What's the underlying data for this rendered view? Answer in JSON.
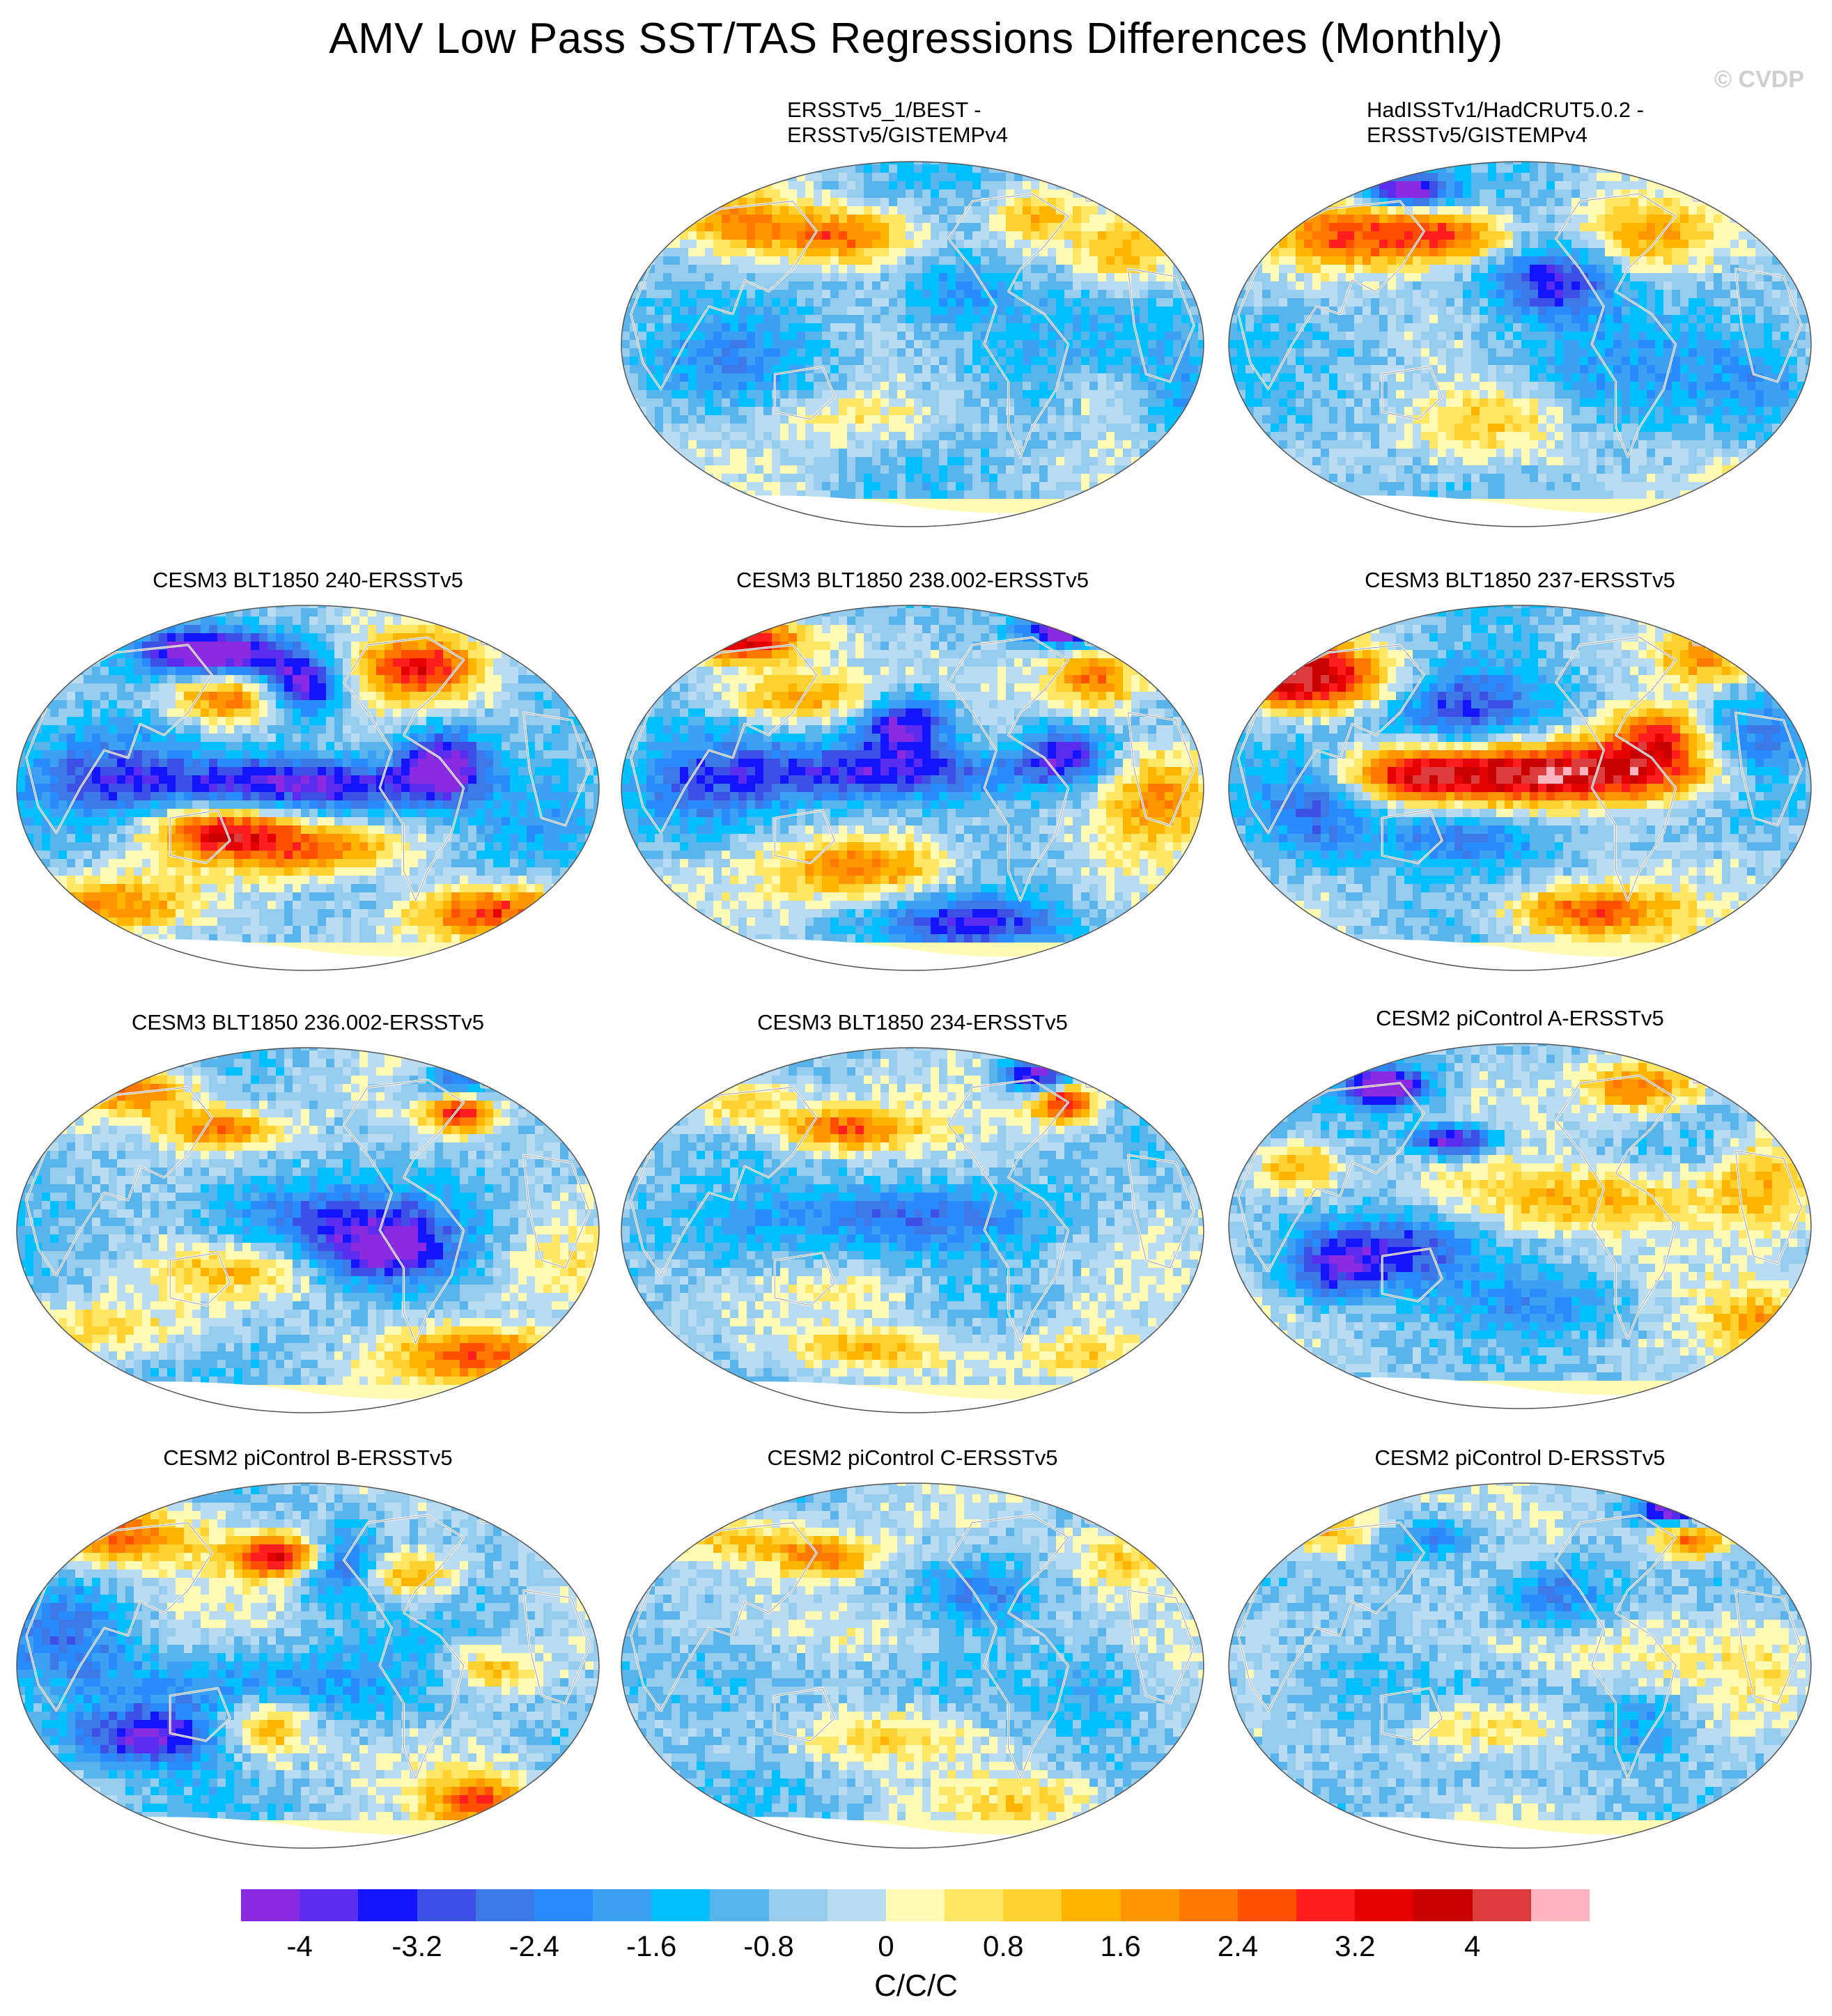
{
  "title": "AMV Low Pass SST/TAS Regressions Differences (Monthly)",
  "watermark": "© CVDP",
  "colorbar": {
    "units": "C/C/C",
    "ticks": [
      "-4",
      "-3.2",
      "-2.4",
      "-1.6",
      "-0.8",
      "0",
      "0.8",
      "1.6",
      "2.4",
      "3.2",
      "4"
    ],
    "colors": [
      "#8a2be2",
      "#5a2cf0",
      "#1414ff",
      "#3c50e6",
      "#3c78e6",
      "#288cff",
      "#3ca0f5",
      "#00c0ff",
      "#5ab4ec",
      "#96cdee",
      "#b9dcf2",
      "#fffab4",
      "#ffe664",
      "#ffd232",
      "#ffb400",
      "#ff9600",
      "#ff7800",
      "#ff5000",
      "#ff1e1e",
      "#e60000",
      "#c80000",
      "#dc3c3c",
      "#ffb4be"
    ]
  },
  "panels": [
    {
      "id": "p1",
      "title_line1": "ERSSTv5_1/BEST -",
      "title_line2": "ERSSTv5/GISTEMPv4",
      "pattern": "obs1"
    },
    {
      "id": "p2",
      "title_line1": "HadISSTv1/HadCRUT5.0.2 -",
      "title_line2": "ERSSTv5/GISTEMPv4",
      "pattern": "obs2"
    },
    {
      "id": "p3",
      "title": "CESM3 BLT1850 240-ERSSTv5",
      "pattern": "m240"
    },
    {
      "id": "p4",
      "title": "CESM3 BLT1850 238.002-ERSSTv5",
      "pattern": "m238"
    },
    {
      "id": "p5",
      "title": "CESM3 BLT1850 237-ERSSTv5",
      "pattern": "m237"
    },
    {
      "id": "p6",
      "title": "CESM3 BLT1850 236.002-ERSSTv5",
      "pattern": "m236"
    },
    {
      "id": "p7",
      "title": "CESM3 BLT1850 234-ERSSTv5",
      "pattern": "m234"
    },
    {
      "id": "p8",
      "title": "CESM2 piControl A-ERSSTv5",
      "pattern": "cA"
    },
    {
      "id": "p9",
      "title": "CESM2 piControl B-ERSSTv5",
      "pattern": "cB"
    },
    {
      "id": "p10",
      "title": "CESM2 piControl C-ERSSTv5",
      "pattern": "cC"
    },
    {
      "id": "p11",
      "title": "CESM2 piControl D-ERSSTv5",
      "pattern": "cD"
    }
  ]
}
